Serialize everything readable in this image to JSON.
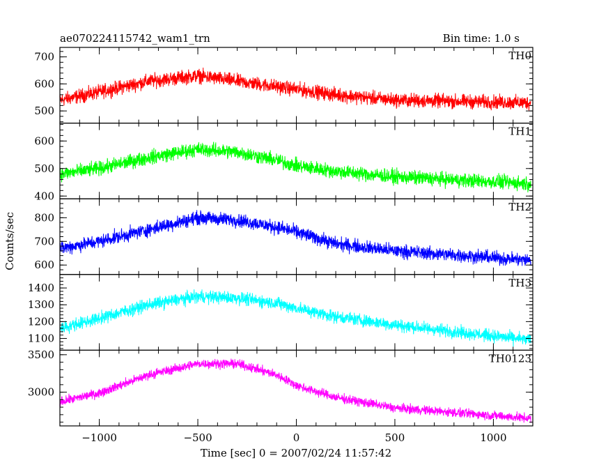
{
  "header": {
    "title": "ae070224115742_wam1_trn",
    "bin_time": "Bin time: 1.0 s"
  },
  "chart_data": {
    "type": "line",
    "ylabel": "Counts/sec",
    "xlabel": "Time [sec] 0 = 2007/02/24 11:57:42",
    "xlim": [
      -1200,
      1200
    ],
    "xticks": [
      -1000,
      -500,
      0,
      500,
      1000
    ],
    "xtick_labels": [
      "−1000",
      "−500",
      "0",
      "500",
      "1000"
    ],
    "x_start": -1200,
    "x_end": 1190,
    "x_step": 1,
    "panels": [
      {
        "name": "TH0",
        "color": "#ff0000",
        "ylim": [
          455,
          735
        ],
        "yticks": [
          500,
          600,
          700
        ],
        "shape": [
          [
            -1200,
            540
          ],
          [
            -1000,
            570
          ],
          [
            -750,
            610
          ],
          [
            -500,
            630
          ],
          [
            -300,
            610
          ],
          [
            -100,
            590
          ],
          [
            0,
            580
          ],
          [
            200,
            560
          ],
          [
            500,
            540
          ],
          [
            1190,
            530
          ]
        ],
        "noise": 38
      },
      {
        "name": "TH1",
        "color": "#00ff00",
        "ylim": [
          390,
          665
        ],
        "yticks": [
          400,
          500,
          600
        ],
        "shape": [
          [
            -1200,
            480
          ],
          [
            -1000,
            500
          ],
          [
            -750,
            540
          ],
          [
            -500,
            570
          ],
          [
            -300,
            560
          ],
          [
            -100,
            530
          ],
          [
            0,
            510
          ],
          [
            200,
            490
          ],
          [
            500,
            470
          ],
          [
            1190,
            445
          ]
        ],
        "noise": 38
      },
      {
        "name": "TH2",
        "color": "#0000ff",
        "ylim": [
          560,
          880
        ],
        "yticks": [
          600,
          700,
          800
        ],
        "shape": [
          [
            -1200,
            670
          ],
          [
            -1000,
            700
          ],
          [
            -750,
            750
          ],
          [
            -500,
            800
          ],
          [
            -300,
            790
          ],
          [
            -100,
            760
          ],
          [
            0,
            740
          ],
          [
            200,
            690
          ],
          [
            500,
            660
          ],
          [
            1190,
            620
          ]
        ],
        "noise": 42
      },
      {
        "name": "TH3",
        "color": "#00ffff",
        "ylim": [
          1030,
          1480
        ],
        "yticks": [
          1100,
          1200,
          1300,
          1400
        ],
        "shape": [
          [
            -1200,
            1160
          ],
          [
            -1000,
            1220
          ],
          [
            -750,
            1300
          ],
          [
            -500,
            1350
          ],
          [
            -300,
            1340
          ],
          [
            -100,
            1310
          ],
          [
            0,
            1280
          ],
          [
            200,
            1230
          ],
          [
            500,
            1180
          ],
          [
            1190,
            1090
          ]
        ],
        "noise": 55
      },
      {
        "name": "TH0123",
        "color": "#ff00ff",
        "ylim": [
          2550,
          3560
        ],
        "yticks": [
          3000,
          3500
        ],
        "shape": [
          [
            -1200,
            2870
          ],
          [
            -1000,
            2990
          ],
          [
            -750,
            3230
          ],
          [
            -500,
            3380
          ],
          [
            -300,
            3380
          ],
          [
            -100,
            3230
          ],
          [
            0,
            3090
          ],
          [
            200,
            2930
          ],
          [
            500,
            2790
          ],
          [
            1190,
            2650
          ]
        ],
        "noise": 90
      }
    ]
  }
}
